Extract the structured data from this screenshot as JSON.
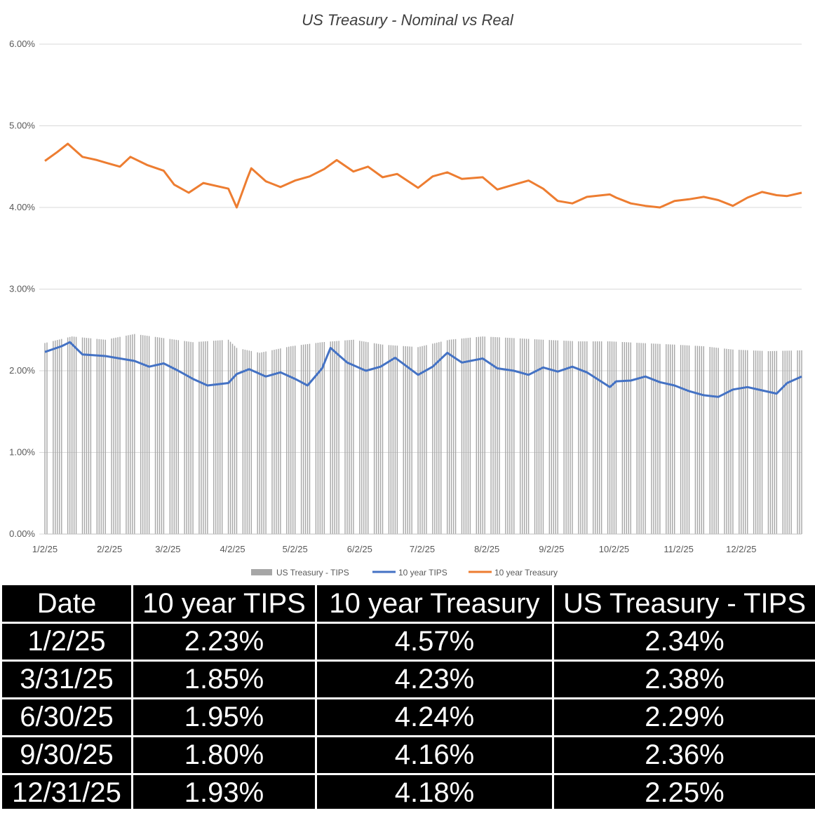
{
  "chart_data": {
    "type": "line",
    "title": "US Treasury - Nominal vs Real",
    "xlabel": "",
    "ylabel": "",
    "ylim": [
      0,
      0.06
    ],
    "y_tick_labels": [
      "0.00%",
      "1.00%",
      "2.00%",
      "3.00%",
      "4.00%",
      "5.00%",
      "6.00%"
    ],
    "y_ticks": [
      0,
      0.01,
      0.02,
      0.03,
      0.04,
      0.05,
      0.06
    ],
    "x_tick_labels": [
      "1/2/25",
      "2/2/25",
      "3/2/25",
      "4/2/25",
      "5/2/25",
      "6/2/25",
      "7/2/25",
      "8/2/25",
      "9/2/25",
      "10/2/25",
      "11/2/25",
      "12/2/25"
    ],
    "x_ticks": [
      "2025-01-02",
      "2025-02-02",
      "2025-03-02",
      "2025-04-02",
      "2025-05-02",
      "2025-06-02",
      "2025-07-02",
      "2025-08-02",
      "2025-09-02",
      "2025-10-02",
      "2025-11-02",
      "2025-12-02"
    ],
    "xlim": [
      "2025-01-02",
      "2025-12-31"
    ],
    "grid": true,
    "legend_position": "bottom",
    "series": [
      {
        "name": "US Treasury - TIPS",
        "kind": "bar",
        "color": "#a6a6a6",
        "points": [
          [
            "2025-01-02",
            0.0234
          ],
          [
            "2025-01-15",
            0.0242
          ],
          [
            "2025-01-31",
            0.0238
          ],
          [
            "2025-02-14",
            0.0245
          ],
          [
            "2025-02-28",
            0.024
          ],
          [
            "2025-03-14",
            0.0235
          ],
          [
            "2025-03-31",
            0.0238
          ],
          [
            "2025-04-04",
            0.0228
          ],
          [
            "2025-04-15",
            0.0222
          ],
          [
            "2025-04-30",
            0.023
          ],
          [
            "2025-05-15",
            0.0235
          ],
          [
            "2025-05-30",
            0.0238
          ],
          [
            "2025-06-13",
            0.0232
          ],
          [
            "2025-06-30",
            0.0229
          ],
          [
            "2025-07-15",
            0.0238
          ],
          [
            "2025-07-31",
            0.0242
          ],
          [
            "2025-08-15",
            0.024
          ],
          [
            "2025-08-29",
            0.0238
          ],
          [
            "2025-09-15",
            0.0236
          ],
          [
            "2025-09-30",
            0.0236
          ],
          [
            "2025-10-15",
            0.0234
          ],
          [
            "2025-10-31",
            0.0232
          ],
          [
            "2025-11-14",
            0.023
          ],
          [
            "2025-11-28",
            0.0226
          ],
          [
            "2025-12-15",
            0.0224
          ],
          [
            "2025-12-31",
            0.0225
          ]
        ]
      },
      {
        "name": "10 year TIPS",
        "kind": "line",
        "color": "#4472c4",
        "points": [
          [
            "2025-01-02",
            0.0223
          ],
          [
            "2025-01-10",
            0.023
          ],
          [
            "2025-01-14",
            0.0235
          ],
          [
            "2025-01-20",
            0.022
          ],
          [
            "2025-01-31",
            0.0218
          ],
          [
            "2025-02-07",
            0.0215
          ],
          [
            "2025-02-14",
            0.0212
          ],
          [
            "2025-02-21",
            0.0205
          ],
          [
            "2025-02-28",
            0.0209
          ],
          [
            "2025-03-07",
            0.02
          ],
          [
            "2025-03-14",
            0.019
          ],
          [
            "2025-03-21",
            0.0182
          ],
          [
            "2025-03-31",
            0.0185
          ],
          [
            "2025-04-04",
            0.0196
          ],
          [
            "2025-04-10",
            0.0202
          ],
          [
            "2025-04-18",
            0.0193
          ],
          [
            "2025-04-25",
            0.0198
          ],
          [
            "2025-05-02",
            0.019
          ],
          [
            "2025-05-08",
            0.0182
          ],
          [
            "2025-05-15",
            0.0203
          ],
          [
            "2025-05-19",
            0.0228
          ],
          [
            "2025-05-27",
            0.021
          ],
          [
            "2025-06-05",
            0.02
          ],
          [
            "2025-06-12",
            0.0205
          ],
          [
            "2025-06-19",
            0.0216
          ],
          [
            "2025-06-30",
            0.0195
          ],
          [
            "2025-07-07",
            0.0205
          ],
          [
            "2025-07-14",
            0.0222
          ],
          [
            "2025-07-21",
            0.021
          ],
          [
            "2025-07-31",
            0.0215
          ],
          [
            "2025-08-07",
            0.0203
          ],
          [
            "2025-08-15",
            0.02
          ],
          [
            "2025-08-22",
            0.0195
          ],
          [
            "2025-08-29",
            0.0204
          ],
          [
            "2025-09-05",
            0.0199
          ],
          [
            "2025-09-12",
            0.0205
          ],
          [
            "2025-09-19",
            0.0198
          ],
          [
            "2025-09-30",
            0.018
          ],
          [
            "2025-10-03",
            0.0187
          ],
          [
            "2025-10-10",
            0.0188
          ],
          [
            "2025-10-17",
            0.0193
          ],
          [
            "2025-10-24",
            0.0186
          ],
          [
            "2025-10-31",
            0.0182
          ],
          [
            "2025-11-07",
            0.0175
          ],
          [
            "2025-11-14",
            0.017
          ],
          [
            "2025-11-21",
            0.0168
          ],
          [
            "2025-11-28",
            0.0177
          ],
          [
            "2025-12-05",
            0.018
          ],
          [
            "2025-12-12",
            0.0176
          ],
          [
            "2025-12-19",
            0.0172
          ],
          [
            "2025-12-24",
            0.0185
          ],
          [
            "2025-12-31",
            0.0193
          ]
        ]
      },
      {
        "name": "10 year Treasury",
        "kind": "line",
        "color": "#ed7d31",
        "points": [
          [
            "2025-01-02",
            0.0457
          ],
          [
            "2025-01-08",
            0.0468
          ],
          [
            "2025-01-13",
            0.0478
          ],
          [
            "2025-01-20",
            0.0462
          ],
          [
            "2025-01-27",
            0.0458
          ],
          [
            "2025-01-31",
            0.0455
          ],
          [
            "2025-02-07",
            0.045
          ],
          [
            "2025-02-12",
            0.0462
          ],
          [
            "2025-02-20",
            0.0452
          ],
          [
            "2025-02-28",
            0.0445
          ],
          [
            "2025-03-05",
            0.0428
          ],
          [
            "2025-03-12",
            0.0418
          ],
          [
            "2025-03-19",
            0.043
          ],
          [
            "2025-03-31",
            0.0423
          ],
          [
            "2025-04-04",
            0.04
          ],
          [
            "2025-04-09",
            0.0435
          ],
          [
            "2025-04-11",
            0.0448
          ],
          [
            "2025-04-18",
            0.0432
          ],
          [
            "2025-04-25",
            0.0425
          ],
          [
            "2025-05-02",
            0.0433
          ],
          [
            "2025-05-09",
            0.0438
          ],
          [
            "2025-05-16",
            0.0447
          ],
          [
            "2025-05-22",
            0.0458
          ],
          [
            "2025-05-30",
            0.0444
          ],
          [
            "2025-06-06",
            0.045
          ],
          [
            "2025-06-13",
            0.0437
          ],
          [
            "2025-06-20",
            0.0441
          ],
          [
            "2025-06-30",
            0.0424
          ],
          [
            "2025-07-07",
            0.0438
          ],
          [
            "2025-07-14",
            0.0443
          ],
          [
            "2025-07-21",
            0.0435
          ],
          [
            "2025-07-31",
            0.0437
          ],
          [
            "2025-08-07",
            0.0422
          ],
          [
            "2025-08-15",
            0.0428
          ],
          [
            "2025-08-22",
            0.0433
          ],
          [
            "2025-08-29",
            0.0423
          ],
          [
            "2025-09-05",
            0.0408
          ],
          [
            "2025-09-12",
            0.0405
          ],
          [
            "2025-09-19",
            0.0413
          ],
          [
            "2025-09-30",
            0.0416
          ],
          [
            "2025-10-03",
            0.0412
          ],
          [
            "2025-10-10",
            0.0405
          ],
          [
            "2025-10-17",
            0.0402
          ],
          [
            "2025-10-24",
            0.04
          ],
          [
            "2025-10-31",
            0.0408
          ],
          [
            "2025-11-07",
            0.041
          ],
          [
            "2025-11-14",
            0.0413
          ],
          [
            "2025-11-21",
            0.0409
          ],
          [
            "2025-11-28",
            0.0402
          ],
          [
            "2025-12-05",
            0.0412
          ],
          [
            "2025-12-12",
            0.0419
          ],
          [
            "2025-12-19",
            0.0415
          ],
          [
            "2025-12-24",
            0.0414
          ],
          [
            "2025-12-31",
            0.0418
          ]
        ]
      }
    ]
  },
  "table": {
    "headers": [
      "Date",
      "10 year TIPS",
      "10 year Treasury",
      "US Treasury - TIPS"
    ],
    "rows": [
      [
        "1/2/25",
        "2.23%",
        "4.57%",
        "2.34%"
      ],
      [
        "3/31/25",
        "1.85%",
        "4.23%",
        "2.38%"
      ],
      [
        "6/30/25",
        "1.95%",
        "4.24%",
        "2.29%"
      ],
      [
        "9/30/25",
        "1.80%",
        "4.16%",
        "2.36%"
      ],
      [
        "12/31/25",
        "1.93%",
        "4.18%",
        "2.25%"
      ]
    ]
  }
}
